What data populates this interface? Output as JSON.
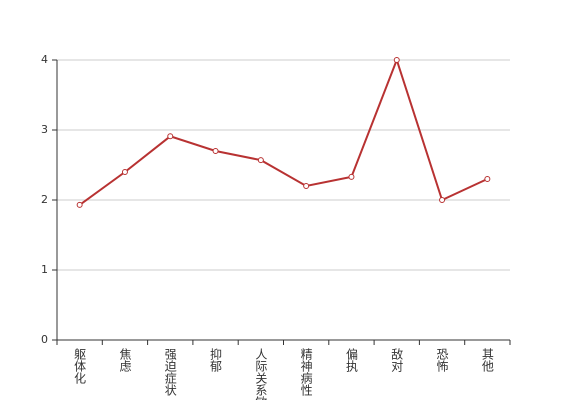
{
  "chart_data": {
    "type": "line",
    "categories": [
      "躯体化",
      "焦虑",
      "强迫症状",
      "抑郁",
      "人际关系敏感",
      "精神病性",
      "偏执",
      "敌对",
      "恐怖",
      "其他"
    ],
    "values": [
      1.93,
      2.4,
      2.91,
      2.7,
      2.57,
      2.2,
      2.33,
      4.0,
      2.0,
      2.3
    ],
    "color": "#b83232",
    "ylim": [
      0,
      4
    ],
    "yticks": [
      0,
      1,
      2,
      3,
      4
    ],
    "grid": true
  }
}
